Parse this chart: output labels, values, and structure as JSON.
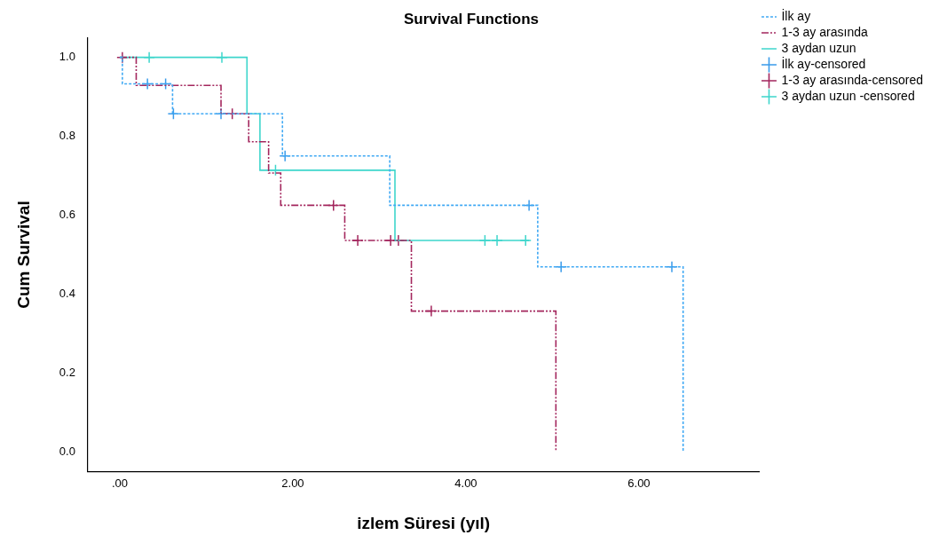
{
  "chart_data": {
    "type": "step",
    "title": "Survival Functions",
    "xlabel": "izlem Süresi (yıl)",
    "ylabel": "Cum Survival",
    "xlim": [
      -0.37,
      7.39
    ],
    "ylim": [
      -0.05,
      1.05
    ],
    "xticks": [
      {
        "value": 0,
        "label": ".00"
      },
      {
        "value": 2,
        "label": "2.00"
      },
      {
        "value": 4,
        "label": "4.00"
      },
      {
        "value": 6,
        "label": "6.00"
      }
    ],
    "yticks": [
      {
        "value": 0,
        "label": "0.0"
      },
      {
        "value": 0.2,
        "label": "0.2"
      },
      {
        "value": 0.4,
        "label": "0.4"
      },
      {
        "value": 0.6,
        "label": "0.6"
      },
      {
        "value": 0.8,
        "label": "0.8"
      },
      {
        "value": 1,
        "label": "1.0"
      }
    ],
    "grid": false,
    "legend": "right",
    "series": [
      {
        "name": "İlk ay",
        "color": "#40a9f4",
        "line_style": "dotted",
        "x": [
          0,
          0.03,
          0.61,
          1.88,
          3.12,
          4.83,
          6.51
        ],
        "values": [
          1,
          0.933,
          0.857,
          0.75,
          0.625,
          0.469,
          0
        ]
      },
      {
        "name": "1-3 ay arasında",
        "color": "#a3265d",
        "line_style": "dashed",
        "x": [
          0,
          0.19,
          1.17,
          1.49,
          1.72,
          1.86,
          2.6,
          3.37,
          5.04
        ],
        "values": [
          1,
          0.929,
          0.857,
          0.786,
          0.707,
          0.625,
          0.536,
          0.357,
          0
        ]
      },
      {
        "name": "3 aydan uzun",
        "color": "#3ed6cc",
        "line_style": "solid",
        "x": [
          0,
          1.47,
          1.62,
          3.18,
          4.73
        ],
        "values": [
          1,
          0.857,
          0.714,
          0.536,
          0.536
        ]
      },
      {
        "name": "İlk ay-censored",
        "type": "scatter",
        "marker": "cross",
        "color": "#3a9bea",
        "x": [
          0.32,
          0.53,
          0.62,
          1.17,
          1.91,
          4.73,
          5.1,
          6.38
        ],
        "values": [
          0.933,
          0.933,
          0.857,
          0.857,
          0.75,
          0.625,
          0.469,
          0.469
        ]
      },
      {
        "name": "1-3 ay arasında-censored",
        "type": "scatter",
        "marker": "cross",
        "color": "#a3265d",
        "x": [
          0.03,
          1.3,
          2.47,
          2.75,
          3.13,
          3.22,
          3.6
        ],
        "values": [
          1,
          0.857,
          0.625,
          0.536,
          0.536,
          0.536,
          0.357
        ]
      },
      {
        "name": "3 aydan uzun -censored",
        "type": "scatter",
        "marker": "cross",
        "color": "#3ed6cc",
        "x": [
          0.34,
          1.18,
          1.8,
          4.22,
          4.36,
          4.69
        ],
        "values": [
          1,
          1,
          0.714,
          0.536,
          0.536,
          0.536
        ]
      }
    ]
  }
}
